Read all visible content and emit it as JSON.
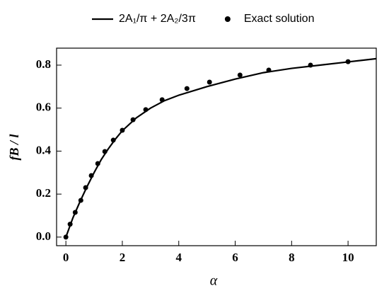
{
  "chart_data": {
    "type": "line",
    "xlabel": "α",
    "ylabel": "fB / l",
    "xlim": [
      -0.33,
      11.0
    ],
    "ylim": [
      -0.04,
      0.879
    ],
    "xticks": [
      0,
      2,
      4,
      6,
      8,
      10
    ],
    "yticks": [
      {
        "value": 0,
        "label": "0.0"
      },
      0.2,
      0.4,
      0.6,
      0.8
    ],
    "series": [
      {
        "name": "2A₁/π + 2A₂/3π",
        "type": "line",
        "color": "#000000",
        "x": [
          0,
          0.25,
          0.5,
          0.75,
          1,
          1.25,
          1.5,
          1.75,
          2,
          2.5,
          3,
          3.5,
          4,
          5,
          6,
          7,
          8,
          9,
          10,
          11
        ],
        "values": [
          0,
          0.09,
          0.165,
          0.235,
          0.3,
          0.36,
          0.41,
          0.455,
          0.495,
          0.555,
          0.6,
          0.635,
          0.66,
          0.7,
          0.735,
          0.765,
          0.785,
          0.8,
          0.815,
          0.83
        ]
      },
      {
        "name": "Exact solution",
        "type": "scatter",
        "color": "#000000",
        "x": [
          0,
          0.15,
          0.33,
          0.53,
          0.7,
          0.9,
          1.13,
          1.38,
          1.68,
          2.0,
          2.38,
          2.83,
          3.41,
          4.29,
          5.09,
          6.17,
          7.19,
          8.67,
          10.0
        ],
        "values": [
          0,
          0.06,
          0.115,
          0.171,
          0.23,
          0.286,
          0.342,
          0.398,
          0.451,
          0.497,
          0.546,
          0.593,
          0.639,
          0.691,
          0.721,
          0.754,
          0.777,
          0.8,
          0.816
        ]
      }
    ]
  }
}
